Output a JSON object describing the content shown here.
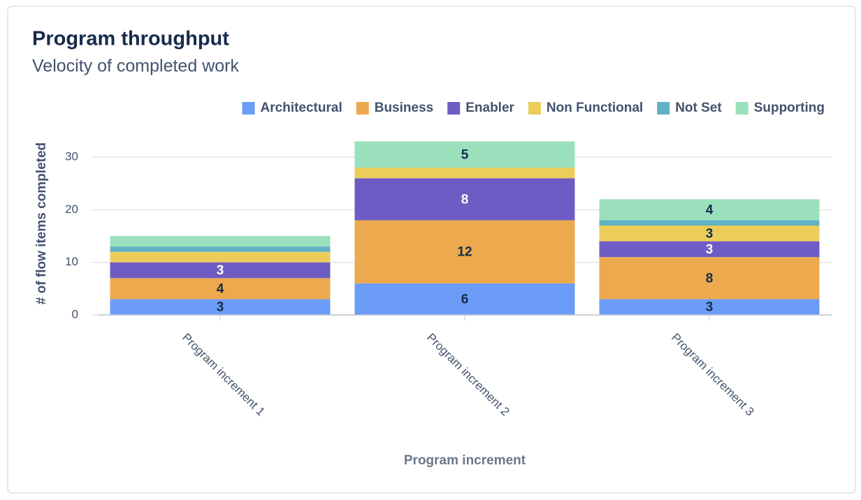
{
  "chart_data": {
    "type": "stacked_bar",
    "title": "Program throughput",
    "subtitle": "Velocity of completed work",
    "x_label": "Program increment",
    "y_label": "# of flow items completed",
    "categories": [
      "Program increment 1",
      "Program increment 2",
      "Program increment 3"
    ],
    "series": [
      {
        "name": "Architectural",
        "color": "#6b9cf8",
        "values": [
          3,
          6,
          3
        ]
      },
      {
        "name": "Business",
        "color": "#eca94d",
        "values": [
          4,
          12,
          8
        ]
      },
      {
        "name": "Enabler",
        "color": "#6e5cc4",
        "values": [
          3,
          8,
          3
        ]
      },
      {
        "name": "Non Functional",
        "color": "#eccd5a",
        "values": [
          2,
          2,
          3
        ]
      },
      {
        "name": "Not Set",
        "color": "#60b1c4",
        "values": [
          1,
          0,
          1
        ]
      },
      {
        "name": "Supporting",
        "color": "#9be0bd",
        "values": [
          2,
          5,
          4
        ]
      }
    ],
    "ylim": [
      0,
      33
    ],
    "yticks": [
      0,
      10,
      20,
      30
    ],
    "grid": true,
    "legend": "top-right"
  }
}
